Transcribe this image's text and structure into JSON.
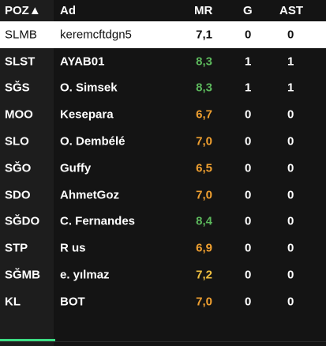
{
  "header": {
    "pos": "POZ▲",
    "name": "Ad",
    "mr": "MR",
    "goals": "G",
    "assists": "AST"
  },
  "colors": {
    "green": "#5cb85c",
    "orange": "#f0a030",
    "yellow": "#f0c040",
    "white": "#ffffff",
    "tab_indicator": "#3ddc84"
  },
  "players": [
    {
      "pos": "SLMB",
      "name": "keremcftdgn5",
      "mr": "7,1",
      "g": "0",
      "ast": "0",
      "mr_color": "#111111",
      "selected": true
    },
    {
      "pos": "SLST",
      "name": "AYAB01",
      "mr": "8,3",
      "g": "1",
      "ast": "1",
      "mr_color": "#5cb85c"
    },
    {
      "pos": "SĞS",
      "name": "O. Simsek",
      "mr": "8,3",
      "g": "1",
      "ast": "1",
      "mr_color": "#5cb85c"
    },
    {
      "pos": "MOO",
      "name": "Kesepara",
      "mr": "6,7",
      "g": "0",
      "ast": "0",
      "mr_color": "#f0a030"
    },
    {
      "pos": "SLO",
      "name": "O. Dembélé",
      "mr": "7,0",
      "g": "0",
      "ast": "0",
      "mr_color": "#f0a030"
    },
    {
      "pos": "SĞO",
      "name": "Guffy",
      "mr": "6,5",
      "g": "0",
      "ast": "0",
      "mr_color": "#f0a030"
    },
    {
      "pos": "SDO",
      "name": "AhmetGoz",
      "mr": "7,0",
      "g": "0",
      "ast": "0",
      "mr_color": "#f0a030"
    },
    {
      "pos": "SĞDO",
      "name": "C. Fernandes",
      "mr": "8,4",
      "g": "0",
      "ast": "0",
      "mr_color": "#5cb85c"
    },
    {
      "pos": "STP",
      "name": "R us",
      "mr": "6,9",
      "g": "0",
      "ast": "0",
      "mr_color": "#f0a030"
    },
    {
      "pos": "SĞMB",
      "name": "e. yılmaz",
      "mr": "7,2",
      "g": "0",
      "ast": "0",
      "mr_color": "#f0c040"
    },
    {
      "pos": "KL",
      "name": "BOT",
      "mr": "7,0",
      "g": "0",
      "ast": "0",
      "mr_color": "#f0a030"
    }
  ]
}
